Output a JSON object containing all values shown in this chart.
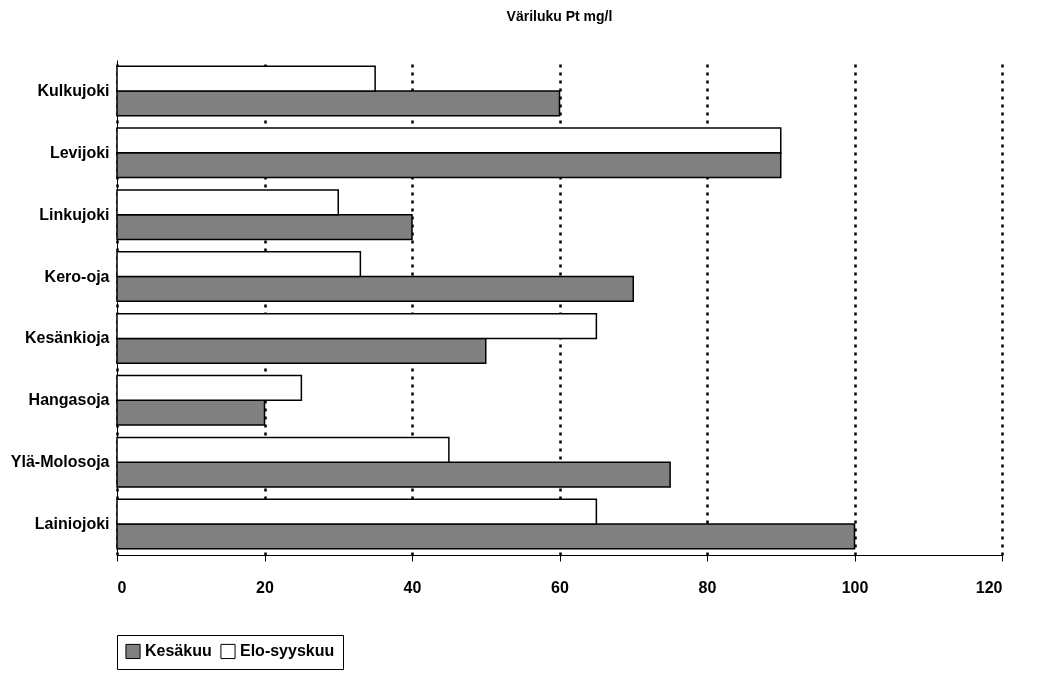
{
  "chart_data": {
    "type": "bar",
    "orientation": "horizontal",
    "title": "Väriluku Pt mg/l",
    "categories": [
      "Kulkujoki",
      "Levijoki",
      "Linkujoki",
      "Kero-oja",
      "Kesänkioja",
      "Hangasoja",
      "Ylä-Molosoja",
      "Lainiojoki"
    ],
    "series": [
      {
        "name": "Kesäkuu",
        "color": "#808080",
        "values": [
          60,
          90,
          40,
          70,
          50,
          20,
          75,
          100
        ]
      },
      {
        "name": "Elo-syyskuu",
        "color": "#ffffff",
        "values": [
          35,
          90,
          30,
          33,
          65,
          25,
          45,
          65
        ]
      }
    ],
    "xlim": [
      0,
      120
    ],
    "xticks": [
      0,
      20,
      40,
      60,
      80,
      100,
      120
    ],
    "grid": "x",
    "legend": "bottom"
  }
}
